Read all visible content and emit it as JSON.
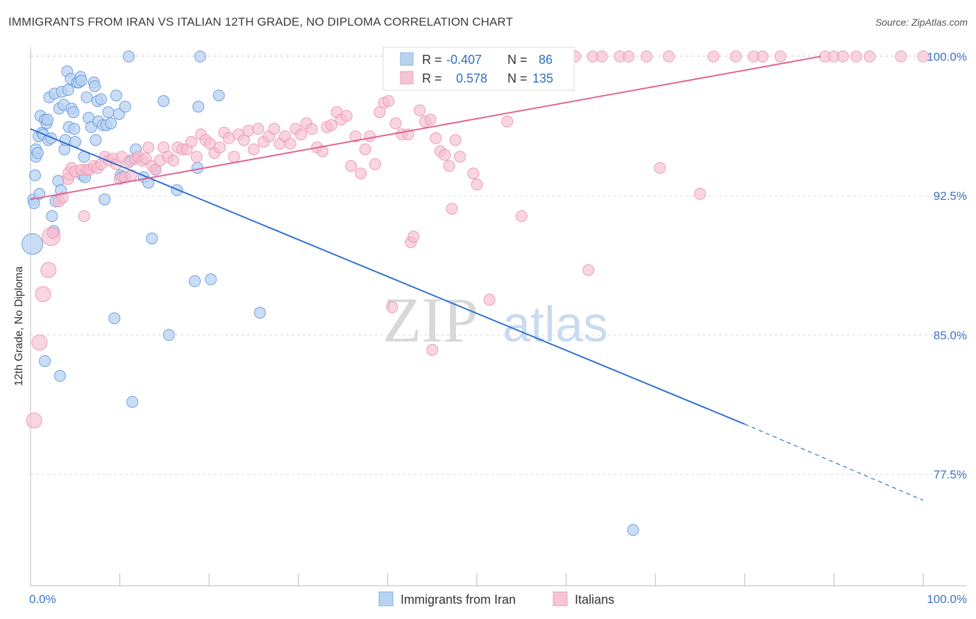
{
  "header": {
    "title": "IMMIGRANTS FROM IRAN VS ITALIAN 12TH GRADE, NO DIPLOMA CORRELATION CHART",
    "source": "Source: ZipAtlas.com"
  },
  "watermark": {
    "zip": "ZIP",
    "atlas": "atlas"
  },
  "legend_stats": [
    {
      "r_label": "R =",
      "r_value": "-0.407",
      "n_label": "N =",
      "n_value": "86",
      "color": "#aac8f0"
    },
    {
      "r_label": "R =",
      "r_value": "0.578",
      "n_label": "N =",
      "n_value": "135",
      "color": "#f6b8ca"
    }
  ],
  "chart_data": {
    "type": "scatter",
    "xlabel": "",
    "ylabel": "12th Grade, No Diploma",
    "x_tick_labels": [
      "0.0%",
      "100.0%"
    ],
    "y_tick_labels": [
      "100.0%",
      "92.5%",
      "85.0%",
      "77.5%"
    ],
    "y_ticks": [
      100.0,
      92.5,
      85.0,
      77.5
    ],
    "xlim": [
      0,
      100
    ],
    "ylim": [
      71.5,
      100.8
    ],
    "grid": true,
    "legend_position": "bottom-center",
    "series": [
      {
        "name": "Immigrants from Iran",
        "color": "#5b8fd6",
        "fill": "#b8d2f2",
        "trend": {
          "x_solid": [
            0,
            80
          ],
          "y_solid": [
            96.1,
            80.2
          ],
          "x_dash": [
            80,
            100
          ],
          "y_dash": [
            80.2,
            76.1
          ]
        },
        "points": [
          [
            0.2,
            89.9
          ],
          [
            0.3,
            92.3
          ],
          [
            0.4,
            92.1
          ],
          [
            0.5,
            93.6
          ],
          [
            0.6,
            94.6
          ],
          [
            0.6,
            95.0
          ],
          [
            0.8,
            94.8
          ],
          [
            0.9,
            95.7
          ],
          [
            1.0,
            92.6
          ],
          [
            1.1,
            96.8
          ],
          [
            1.3,
            95.9
          ],
          [
            1.4,
            95.8
          ],
          [
            1.6,
            96.6
          ],
          [
            1.6,
            83.6
          ],
          [
            1.8,
            96.4
          ],
          [
            1.9,
            96.6
          ],
          [
            2.0,
            95.5
          ],
          [
            2.1,
            97.8
          ],
          [
            2.3,
            95.6
          ],
          [
            2.4,
            91.4
          ],
          [
            2.6,
            90.6
          ],
          [
            2.7,
            98.0
          ],
          [
            2.8,
            92.2
          ],
          [
            3.1,
            93.3
          ],
          [
            3.2,
            97.2
          ],
          [
            3.3,
            82.8
          ],
          [
            3.4,
            92.8
          ],
          [
            3.5,
            98.1
          ],
          [
            3.7,
            97.4
          ],
          [
            3.8,
            95.0
          ],
          [
            3.9,
            95.5
          ],
          [
            4.1,
            99.2
          ],
          [
            4.2,
            98.2
          ],
          [
            4.3,
            96.2
          ],
          [
            4.5,
            98.8
          ],
          [
            4.6,
            97.2
          ],
          [
            4.8,
            97.0
          ],
          [
            4.9,
            96.1
          ],
          [
            5.0,
            95.4
          ],
          [
            5.2,
            98.6
          ],
          [
            5.4,
            98.6
          ],
          [
            5.6,
            98.9
          ],
          [
            5.7,
            98.7
          ],
          [
            5.8,
            93.6
          ],
          [
            6.0,
            94.6
          ],
          [
            6.1,
            93.5
          ],
          [
            6.3,
            97.8
          ],
          [
            6.5,
            96.7
          ],
          [
            6.8,
            96.2
          ],
          [
            7.1,
            98.6
          ],
          [
            7.2,
            98.4
          ],
          [
            7.3,
            95.5
          ],
          [
            7.5,
            97.6
          ],
          [
            7.6,
            96.5
          ],
          [
            7.9,
            97.7
          ],
          [
            8.1,
            96.3
          ],
          [
            8.3,
            92.3
          ],
          [
            8.5,
            96.3
          ],
          [
            8.7,
            97.0
          ],
          [
            9.0,
            96.4
          ],
          [
            9.4,
            85.9
          ],
          [
            9.6,
            97.9
          ],
          [
            9.9,
            96.9
          ],
          [
            10.1,
            93.6
          ],
          [
            10.3,
            93.5
          ],
          [
            10.6,
            97.3
          ],
          [
            11.0,
            100.0
          ],
          [
            11.2,
            94.4
          ],
          [
            11.4,
            81.4
          ],
          [
            11.8,
            95.0
          ],
          [
            12.7,
            93.5
          ],
          [
            13.2,
            93.2
          ],
          [
            13.6,
            90.2
          ],
          [
            14.0,
            93.9
          ],
          [
            14.9,
            97.6
          ],
          [
            15.5,
            85.0
          ],
          [
            16.4,
            92.8
          ],
          [
            18.4,
            87.9
          ],
          [
            19.0,
            100.0
          ],
          [
            18.7,
            94.0
          ],
          [
            18.8,
            97.3
          ],
          [
            20.2,
            88.0
          ],
          [
            21.1,
            97.9
          ],
          [
            25.7,
            86.2
          ],
          [
            43.1,
            100.0
          ],
          [
            67.5,
            74.5
          ]
        ],
        "sizes_note": "first point is the large marker"
      },
      {
        "name": "Italians",
        "color": "#e56b96",
        "fill": "#f6bfd0",
        "trend": {
          "x": [
            0,
            88.5
          ],
          "y": [
            92.3,
            100.0
          ]
        },
        "points": [
          [
            0.4,
            80.4
          ],
          [
            1.0,
            84.6
          ],
          [
            1.4,
            87.2
          ],
          [
            2.0,
            88.5
          ],
          [
            2.3,
            90.3
          ],
          [
            2.5,
            90.5
          ],
          [
            3.2,
            92.2
          ],
          [
            3.6,
            92.4
          ],
          [
            4.2,
            93.4
          ],
          [
            4.4,
            93.7
          ],
          [
            4.6,
            94.0
          ],
          [
            5.0,
            93.8
          ],
          [
            5.7,
            93.9
          ],
          [
            6.0,
            91.4
          ],
          [
            6.3,
            93.9
          ],
          [
            6.6,
            93.9
          ],
          [
            7.1,
            94.1
          ],
          [
            7.5,
            94.0
          ],
          [
            7.9,
            94.2
          ],
          [
            8.3,
            94.6
          ],
          [
            8.8,
            94.4
          ],
          [
            9.2,
            94.5
          ],
          [
            9.6,
            94.2
          ],
          [
            10.0,
            93.4
          ],
          [
            10.2,
            94.6
          ],
          [
            10.6,
            93.5
          ],
          [
            11.0,
            94.3
          ],
          [
            11.3,
            93.6
          ],
          [
            11.7,
            94.5
          ],
          [
            12.1,
            94.6
          ],
          [
            12.5,
            94.4
          ],
          [
            12.9,
            94.5
          ],
          [
            13.2,
            95.1
          ],
          [
            13.6,
            94.1
          ],
          [
            14.0,
            93.9
          ],
          [
            14.5,
            94.4
          ],
          [
            14.9,
            95.1
          ],
          [
            15.4,
            94.6
          ],
          [
            16.0,
            94.4
          ],
          [
            16.5,
            95.1
          ],
          [
            17.0,
            95.0
          ],
          [
            17.5,
            95.0
          ],
          [
            18.0,
            95.4
          ],
          [
            18.6,
            94.6
          ],
          [
            19.1,
            95.8
          ],
          [
            19.6,
            95.5
          ],
          [
            20.1,
            95.3
          ],
          [
            20.6,
            94.8
          ],
          [
            21.2,
            95.1
          ],
          [
            21.7,
            95.9
          ],
          [
            22.2,
            95.6
          ],
          [
            22.8,
            94.6
          ],
          [
            23.3,
            95.8
          ],
          [
            23.9,
            95.5
          ],
          [
            24.4,
            96.0
          ],
          [
            25.0,
            95.0
          ],
          [
            25.5,
            96.1
          ],
          [
            26.1,
            95.4
          ],
          [
            26.7,
            95.7
          ],
          [
            27.3,
            96.1
          ],
          [
            27.9,
            95.3
          ],
          [
            28.5,
            95.7
          ],
          [
            29.1,
            95.3
          ],
          [
            29.7,
            96.1
          ],
          [
            30.3,
            95.8
          ],
          [
            30.9,
            96.4
          ],
          [
            31.5,
            96.1
          ],
          [
            32.1,
            95.1
          ],
          [
            32.7,
            94.9
          ],
          [
            33.2,
            96.2
          ],
          [
            33.7,
            96.3
          ],
          [
            34.3,
            97.0
          ],
          [
            34.8,
            96.6
          ],
          [
            35.4,
            96.8
          ],
          [
            35.9,
            94.1
          ],
          [
            36.4,
            95.7
          ],
          [
            37.0,
            93.7
          ],
          [
            37.5,
            95.0
          ],
          [
            38.0,
            95.7
          ],
          [
            38.6,
            94.2
          ],
          [
            39.1,
            97.0
          ],
          [
            39.6,
            97.5
          ],
          [
            40.1,
            97.6
          ],
          [
            40.5,
            86.5
          ],
          [
            40.9,
            96.4
          ],
          [
            41.6,
            95.8
          ],
          [
            42.3,
            95.8
          ],
          [
            42.6,
            90.0
          ],
          [
            42.7,
            100.0
          ],
          [
            42.9,
            90.3
          ],
          [
            43.6,
            97.1
          ],
          [
            44.2,
            96.5
          ],
          [
            44.8,
            96.6
          ],
          [
            45.0,
            84.2
          ],
          [
            45.4,
            95.6
          ],
          [
            45.9,
            94.9
          ],
          [
            46.4,
            94.7
          ],
          [
            46.9,
            94.1
          ],
          [
            47.2,
            91.8
          ],
          [
            47.6,
            95.5
          ],
          [
            48.1,
            94.6
          ],
          [
            48.7,
            98.5
          ],
          [
            49.2,
            100.0
          ],
          [
            49.6,
            93.7
          ],
          [
            50.0,
            93.1
          ],
          [
            51.0,
            100.0
          ],
          [
            51.4,
            86.9
          ],
          [
            53.0,
            100.0
          ],
          [
            53.4,
            96.5
          ],
          [
            55.0,
            91.4
          ],
          [
            56.5,
            100.0
          ],
          [
            58.0,
            100.0
          ],
          [
            59.5,
            100.0
          ],
          [
            61.0,
            100.0
          ],
          [
            62.5,
            88.5
          ],
          [
            63.0,
            100.0
          ],
          [
            64.0,
            100.0
          ],
          [
            66.0,
            100.0
          ],
          [
            67.0,
            100.0
          ],
          [
            69.0,
            100.0
          ],
          [
            70.5,
            94.0
          ],
          [
            71.5,
            100.0
          ],
          [
            75.0,
            92.6
          ],
          [
            76.5,
            100.0
          ],
          [
            79.0,
            100.0
          ],
          [
            81.0,
            100.0
          ],
          [
            82.0,
            100.0
          ],
          [
            84.0,
            100.0
          ],
          [
            89.0,
            100.0
          ],
          [
            90.0,
            100.0
          ],
          [
            91.0,
            100.0
          ],
          [
            92.5,
            100.0
          ],
          [
            94.0,
            100.0
          ],
          [
            97.5,
            100.0
          ],
          [
            100.0,
            100.0
          ]
        ]
      }
    ]
  }
}
